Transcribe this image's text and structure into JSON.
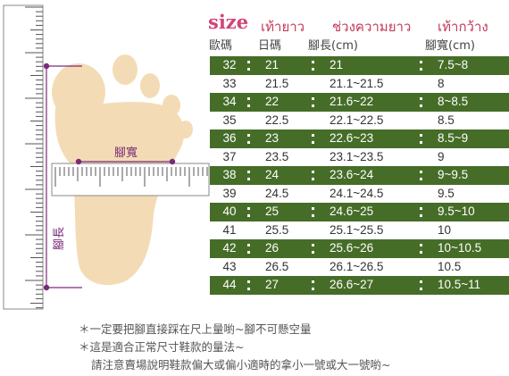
{
  "header": {
    "size": "size",
    "col_foot_th": "เท้ายาว",
    "col_range_th": "ช่วงความยาว",
    "col_width_th": "เท้ากว้าง",
    "col_eu_cn": "歐碼",
    "col_jp_cn": "日碼",
    "col_length_cn": "腳長(cm)",
    "col_width_cn": "腳寬(cm)"
  },
  "illustration": {
    "width_label": "腳寬",
    "length_label": "腳長"
  },
  "rows": [
    {
      "eu": "32",
      "jp": "21",
      "length": "21",
      "width": "7.5~8"
    },
    {
      "eu": "33",
      "jp": "21.5",
      "length": "21.1~21.5",
      "width": "8"
    },
    {
      "eu": "34",
      "jp": "22",
      "length": "21.6~22",
      "width": "8~8.5"
    },
    {
      "eu": "35",
      "jp": "22.5",
      "length": "22.1~22.5",
      "width": "8.5"
    },
    {
      "eu": "36",
      "jp": "23",
      "length": "22.6~23",
      "width": "8.5~9"
    },
    {
      "eu": "37",
      "jp": "23.5",
      "length": "23.1~23.5",
      "width": "9"
    },
    {
      "eu": "38",
      "jp": "24",
      "length": "23.6~24",
      "width": "9~9.5"
    },
    {
      "eu": "39",
      "jp": "24.5",
      "length": "24.1~24.5",
      "width": "9.5"
    },
    {
      "eu": "40",
      "jp": "25",
      "length": "24.6~25",
      "width": "9.5~10"
    },
    {
      "eu": "41",
      "jp": "25.5",
      "length": "25.1~25.5",
      "width": "10"
    },
    {
      "eu": "42",
      "jp": "26",
      "length": "25.6~26",
      "width": "10~10.5"
    },
    {
      "eu": "43",
      "jp": "26.5",
      "length": "26.1~26.5",
      "width": "10.5"
    },
    {
      "eu": "44",
      "jp": "27",
      "length": "26.6~27",
      "width": "10.5~11"
    }
  ],
  "notes": {
    "line1": "＊一定要把腳直接踩在尺上量喲~腳不可懸空量",
    "line2": "＊這是適合正常尺寸鞋款的量法~",
    "line3": "請注意賣場說明鞋款偏大或偏小適時的拿小一號或大一號喲~"
  },
  "colors": {
    "dark_row": "#466d28",
    "foot": "#f3dcb5",
    "header_pink": "#d2447a",
    "marker": "#7a2a7a"
  }
}
